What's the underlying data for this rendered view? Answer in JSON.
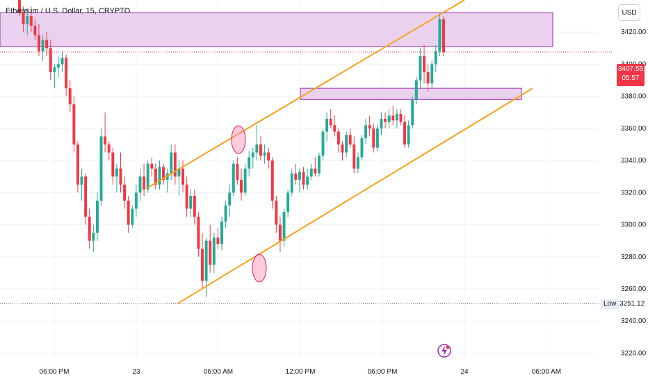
{
  "header": {
    "symbol_title": "Ethereum / U.S. Dollar, 15, CRYPTO"
  },
  "currency_button": {
    "label": "USD"
  },
  "price_badge": {
    "price": "3407.55",
    "countdown": "05:57",
    "color": "#f23645"
  },
  "low_marker": {
    "label": "Low",
    "value": "3251.12"
  },
  "chart_data": {
    "type": "candlestick",
    "x_ticks": [
      "06:00 PM",
      "23",
      "06:00 AM",
      "12:00 PM",
      "06:00 PM",
      "24",
      "06:00 AM"
    ],
    "y_ticks": [
      "3420.00",
      "3400.00",
      "3380.00",
      "3360.00",
      "3340.00",
      "3320.00",
      "3300.00",
      "3280.00",
      "3260.00",
      "3240.00",
      "3220.00"
    ],
    "ylim": [
      3215,
      3440
    ],
    "colors": {
      "up": "#22ab94",
      "down": "#f23645",
      "channel": "#f7a21b",
      "zone_fill": "#e1bee7",
      "zone_border": "#9c27b0",
      "circle": "#f48fb1"
    },
    "candles": [
      [
        3440,
        3445,
        3430,
        3432
      ],
      [
        3432,
        3436,
        3420,
        3425
      ],
      [
        3425,
        3435,
        3418,
        3430
      ],
      [
        3430,
        3436,
        3420,
        3424
      ],
      [
        3424,
        3428,
        3415,
        3418
      ],
      [
        3418,
        3425,
        3405,
        3408
      ],
      [
        3408,
        3418,
        3402,
        3415
      ],
      [
        3415,
        3420,
        3405,
        3410
      ],
      [
        3410,
        3415,
        3390,
        3395
      ],
      [
        3395,
        3400,
        3385,
        3398
      ],
      [
        3398,
        3405,
        3392,
        3400
      ],
      [
        3400,
        3408,
        3395,
        3404
      ],
      [
        3404,
        3406,
        3380,
        3385
      ],
      [
        3385,
        3390,
        3370,
        3375
      ],
      [
        3375,
        3380,
        3345,
        3350
      ],
      [
        3350,
        3352,
        3320,
        3325
      ],
      [
        3325,
        3335,
        3315,
        3330
      ],
      [
        3330,
        3332,
        3300,
        3305
      ],
      [
        3305,
        3310,
        3285,
        3290
      ],
      [
        3290,
        3300,
        3283,
        3295
      ],
      [
        3295,
        3320,
        3290,
        3315
      ],
      [
        3315,
        3360,
        3312,
        3355
      ],
      [
        3355,
        3370,
        3345,
        3350
      ],
      [
        3350,
        3352,
        3340,
        3345
      ],
      [
        3345,
        3348,
        3325,
        3330
      ],
      [
        3330,
        3338,
        3320,
        3335
      ],
      [
        3335,
        3345,
        3320,
        3325
      ],
      [
        3325,
        3330,
        3310,
        3315
      ],
      [
        3315,
        3318,
        3295,
        3300
      ],
      [
        3300,
        3312,
        3298,
        3310
      ],
      [
        3310,
        3325,
        3305,
        3320
      ],
      [
        3320,
        3335,
        3315,
        3330
      ],
      [
        3330,
        3338,
        3318,
        3322
      ],
      [
        3322,
        3340,
        3320,
        3338
      ],
      [
        3338,
        3342,
        3330,
        3335
      ],
      [
        3335,
        3338,
        3322,
        3325
      ],
      [
        3325,
        3340,
        3322,
        3336
      ],
      [
        3336,
        3338,
        3325,
        3328
      ],
      [
        3328,
        3335,
        3320,
        3332
      ],
      [
        3332,
        3350,
        3328,
        3345
      ],
      [
        3345,
        3350,
        3325,
        3330
      ],
      [
        3330,
        3340,
        3318,
        3335
      ],
      [
        3335,
        3340,
        3320,
        3325
      ],
      [
        3325,
        3330,
        3305,
        3310
      ],
      [
        3310,
        3322,
        3305,
        3318
      ],
      [
        3318,
        3322,
        3300,
        3305
      ],
      [
        3305,
        3308,
        3280,
        3285
      ],
      [
        3285,
        3295,
        3260,
        3265
      ],
      [
        3265,
        3292,
        3255,
        3290
      ],
      [
        3290,
        3300,
        3270,
        3275
      ],
      [
        3275,
        3295,
        3270,
        3292
      ],
      [
        3292,
        3298,
        3285,
        3288
      ],
      [
        3288,
        3305,
        3284,
        3302
      ],
      [
        3302,
        3315,
        3298,
        3312
      ],
      [
        3312,
        3325,
        3305,
        3320
      ],
      [
        3320,
        3340,
        3318,
        3338
      ],
      [
        3338,
        3342,
        3325,
        3328
      ],
      [
        3328,
        3335,
        3315,
        3320
      ],
      [
        3320,
        3338,
        3318,
        3335
      ],
      [
        3335,
        3346,
        3330,
        3342
      ],
      [
        3342,
        3348,
        3335,
        3345
      ],
      [
        3345,
        3362,
        3340,
        3350
      ],
      [
        3350,
        3355,
        3340,
        3343
      ],
      [
        3343,
        3350,
        3338,
        3345
      ],
      [
        3345,
        3348,
        3335,
        3340
      ],
      [
        3340,
        3342,
        3310,
        3315
      ],
      [
        3315,
        3318,
        3295,
        3300
      ],
      [
        3300,
        3305,
        3283,
        3290
      ],
      [
        3290,
        3310,
        3286,
        3308
      ],
      [
        3308,
        3322,
        3305,
        3320
      ],
      [
        3320,
        3335,
        3318,
        3332
      ],
      [
        3332,
        3338,
        3325,
        3328
      ],
      [
        3328,
        3335,
        3320,
        3333
      ],
      [
        3333,
        3336,
        3322,
        3325
      ],
      [
        3325,
        3335,
        3322,
        3330
      ],
      [
        3330,
        3338,
        3328,
        3335
      ],
      [
        3335,
        3342,
        3330,
        3332
      ],
      [
        3332,
        3345,
        3330,
        3343
      ],
      [
        3343,
        3360,
        3340,
        3358
      ],
      [
        3358,
        3370,
        3352,
        3366
      ],
      [
        3366,
        3372,
        3360,
        3362
      ],
      [
        3362,
        3368,
        3355,
        3358
      ],
      [
        3358,
        3360,
        3345,
        3350
      ],
      [
        3350,
        3352,
        3340,
        3345
      ],
      [
        3345,
        3358,
        3342,
        3356
      ],
      [
        3356,
        3360,
        3348,
        3350
      ],
      [
        3350,
        3355,
        3332,
        3335
      ],
      [
        3335,
        3345,
        3332,
        3342
      ],
      [
        3342,
        3356,
        3340,
        3354
      ],
      [
        3354,
        3366,
        3350,
        3362
      ],
      [
        3362,
        3368,
        3355,
        3360
      ],
      [
        3360,
        3363,
        3345,
        3348
      ],
      [
        3348,
        3362,
        3346,
        3360
      ],
      [
        3360,
        3370,
        3356,
        3366
      ],
      [
        3366,
        3370,
        3360,
        3364
      ],
      [
        3364,
        3372,
        3360,
        3368
      ],
      [
        3368,
        3374,
        3362,
        3365
      ],
      [
        3365,
        3372,
        3360,
        3369
      ],
      [
        3369,
        3372,
        3362,
        3364
      ],
      [
        3364,
        3368,
        3348,
        3350
      ],
      [
        3350,
        3365,
        3348,
        3362
      ],
      [
        3362,
        3380,
        3360,
        3378
      ],
      [
        3378,
        3392,
        3375,
        3390
      ],
      [
        3390,
        3410,
        3385,
        3405
      ],
      [
        3405,
        3412,
        3388,
        3395
      ],
      [
        3395,
        3400,
        3383,
        3388
      ],
      [
        3388,
        3402,
        3385,
        3400
      ],
      [
        3400,
        3412,
        3395,
        3408
      ],
      [
        3408,
        3432,
        3405,
        3428
      ],
      [
        3428,
        3430,
        3405,
        3407.55
      ]
    ],
    "channel_upper": [
      [
        3323,
        0
      ],
      [
        3440,
        111
      ]
    ],
    "channel_lower": [
      [
        3251,
        0
      ],
      [
        3385,
        136
      ]
    ],
    "resistance_zone": {
      "top": 3432,
      "bottom": 3411
    },
    "support_zone": {
      "top": 3385,
      "bottom": 3378
    },
    "low_value": 3251.12,
    "current_price": 3407.55
  }
}
